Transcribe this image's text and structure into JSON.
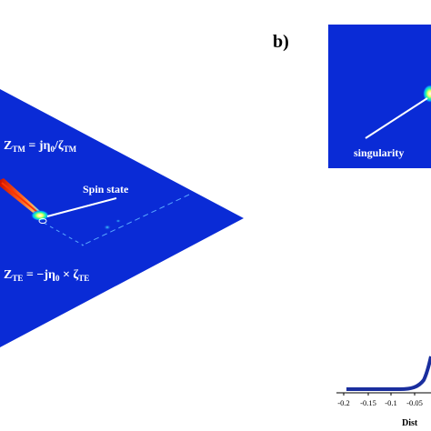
{
  "panel_b": {
    "label": "b)",
    "annotation": "singularity"
  },
  "panel_a": {
    "eq_tm": {
      "z": "Z",
      "sub": "TM",
      "rhs_main": " = jη",
      "rhs_sub0": "0",
      "rhs_div": "/ζ",
      "rhs_sub": "TM"
    },
    "eq_te": {
      "z": "Z",
      "sub": "TE",
      "rhs_main": " = −jη",
      "rhs_sub0": "0",
      "rhs_mul": " × ζ",
      "rhs_sub": "TE"
    },
    "annotation": "Spin state"
  },
  "colors": {
    "field_background": "#0a2bd6",
    "plot_line": "#1a2e9e"
  },
  "panel_c": {
    "xlabel": "Dist",
    "x_ticks": [
      "-0.2",
      "-0.15",
      "-0.1",
      "-0.05"
    ]
  }
}
